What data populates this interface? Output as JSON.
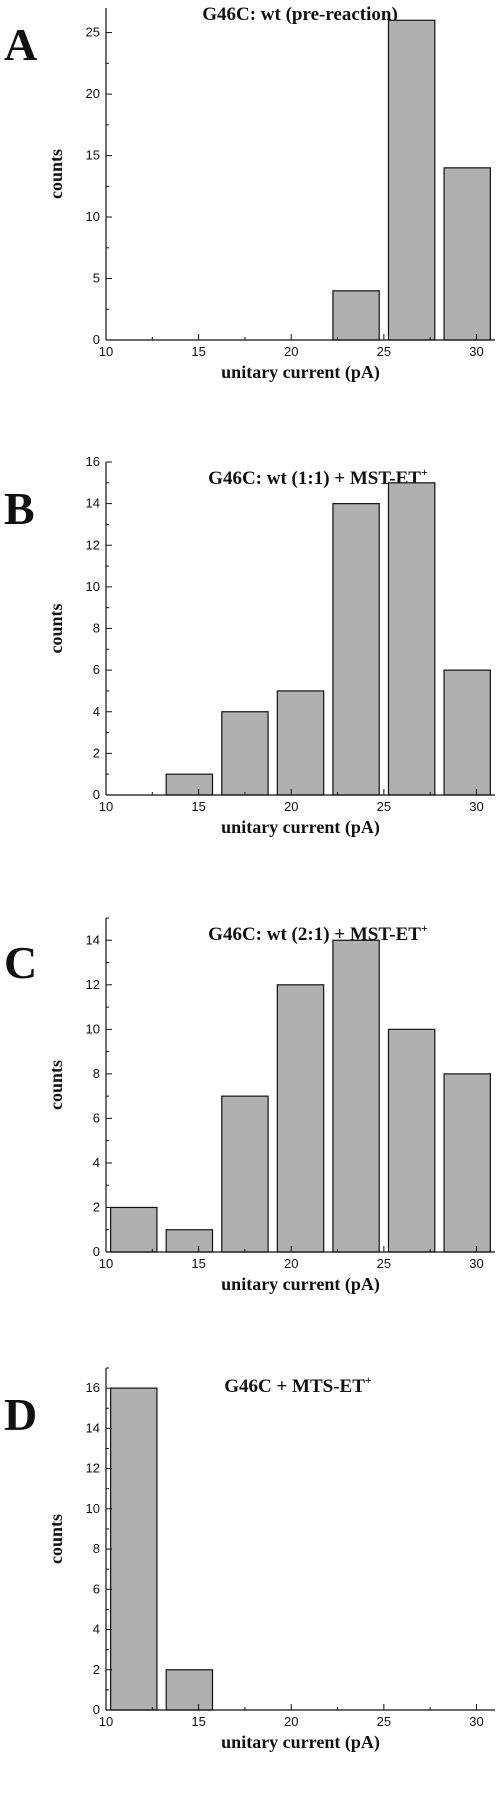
{
  "chart_data": [
    {
      "type": "bar",
      "panel": "A",
      "title": "G46C: wt  (pre-reaction)",
      "xlabel": "unitary current (pA)",
      "ylabel": "counts",
      "xlim": [
        10,
        31
      ],
      "ylim": [
        0,
        27
      ],
      "xticks": [
        10,
        15,
        20,
        25,
        30
      ],
      "yticks": [
        0,
        5,
        10,
        15,
        20,
        25
      ],
      "bin_width": 2.5,
      "bins": [
        {
          "x": 23.5,
          "value": 4
        },
        {
          "x": 26.5,
          "value": 26
        },
        {
          "x": 29.5,
          "value": 14
        }
      ]
    },
    {
      "type": "bar",
      "panel": "B",
      "title": "G46C: wt (1:1)  + MST-ET",
      "title_sup": "+",
      "xlabel": "unitary current (pA)",
      "ylabel": "counts",
      "xlim": [
        10,
        31
      ],
      "ylim": [
        0,
        16
      ],
      "xticks": [
        10,
        15,
        20,
        25,
        30
      ],
      "yticks": [
        0,
        2,
        4,
        6,
        8,
        10,
        12,
        14,
        16
      ],
      "bin_width": 2.5,
      "bins": [
        {
          "x": 14.5,
          "value": 1
        },
        {
          "x": 17.5,
          "value": 4
        },
        {
          "x": 20.5,
          "value": 5
        },
        {
          "x": 23.5,
          "value": 14
        },
        {
          "x": 26.5,
          "value": 15
        },
        {
          "x": 29.5,
          "value": 6
        }
      ]
    },
    {
      "type": "bar",
      "panel": "C",
      "title": "G46C: wt (2:1)  + MST-ET",
      "title_sup": "+",
      "xlabel": "unitary current (pA)",
      "ylabel": "counts",
      "xlim": [
        10,
        31
      ],
      "ylim": [
        0,
        15
      ],
      "xticks": [
        10,
        15,
        20,
        25,
        30
      ],
      "yticks": [
        0,
        2,
        4,
        6,
        8,
        10,
        12,
        14
      ],
      "bin_width": 2.5,
      "bins": [
        {
          "x": 11.5,
          "value": 2
        },
        {
          "x": 14.5,
          "value": 1
        },
        {
          "x": 17.5,
          "value": 7
        },
        {
          "x": 20.5,
          "value": 12
        },
        {
          "x": 23.5,
          "value": 14
        },
        {
          "x": 26.5,
          "value": 10
        },
        {
          "x": 29.5,
          "value": 8
        }
      ]
    },
    {
      "type": "bar",
      "panel": "D",
      "title": "G46C + MTS-ET",
      "title_sup": "+",
      "xlabel": "unitary current (pA)",
      "ylabel": "counts",
      "xlim": [
        10,
        31
      ],
      "ylim": [
        0,
        17
      ],
      "xticks": [
        10,
        15,
        20,
        25,
        30
      ],
      "yticks": [
        0,
        2,
        4,
        6,
        8,
        10,
        12,
        14,
        16
      ],
      "bin_width": 2.5,
      "bins": [
        {
          "x": 11.5,
          "value": 16
        },
        {
          "x": 14.5,
          "value": 2
        }
      ]
    }
  ],
  "colors": {
    "bar_fill": "#b0b0b0",
    "bar_stroke": "#111111"
  }
}
